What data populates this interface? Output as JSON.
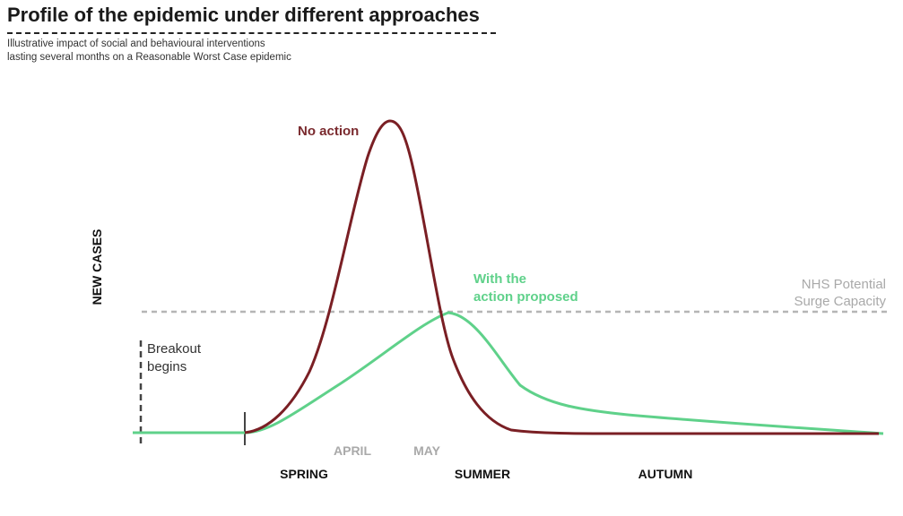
{
  "header": {
    "title": "Profile of the epidemic under different approaches",
    "subtitle_lines": [
      "Illustrative impact of social and behavioural interventions",
      "lasting several months on a Reasonable Worst Case epidemic"
    ]
  },
  "chart_data": {
    "type": "line",
    "ylabel": "NEW CASES",
    "xlabel": "",
    "x_month_ticks": [
      "APRIL",
      "MAY"
    ],
    "x_season_labels": [
      "SPRING",
      "SUMMER",
      "AUTUMN"
    ],
    "series": [
      {
        "name": "No action",
        "color": "#7a1f24",
        "shape": "tall narrow peak shortly after APRIL, falling back to baseline before SUMMER"
      },
      {
        "name": "With the action proposed",
        "color": "#5fd18a",
        "shape": "lower, broader peak near MAY reaching the surge capacity line, long tail through AUTUMN"
      }
    ],
    "threshold": {
      "label": "NHS Potential Surge Capacity",
      "label_lines": [
        "NHS Potential",
        "Surge Capacity"
      ],
      "color": "#b5b5b5"
    },
    "annotations": [
      {
        "name": "breakout",
        "label_lines": [
          "Breakout",
          "begins"
        ]
      }
    ],
    "grid": false,
    "legend": "none (series labelled directly on chart)"
  }
}
